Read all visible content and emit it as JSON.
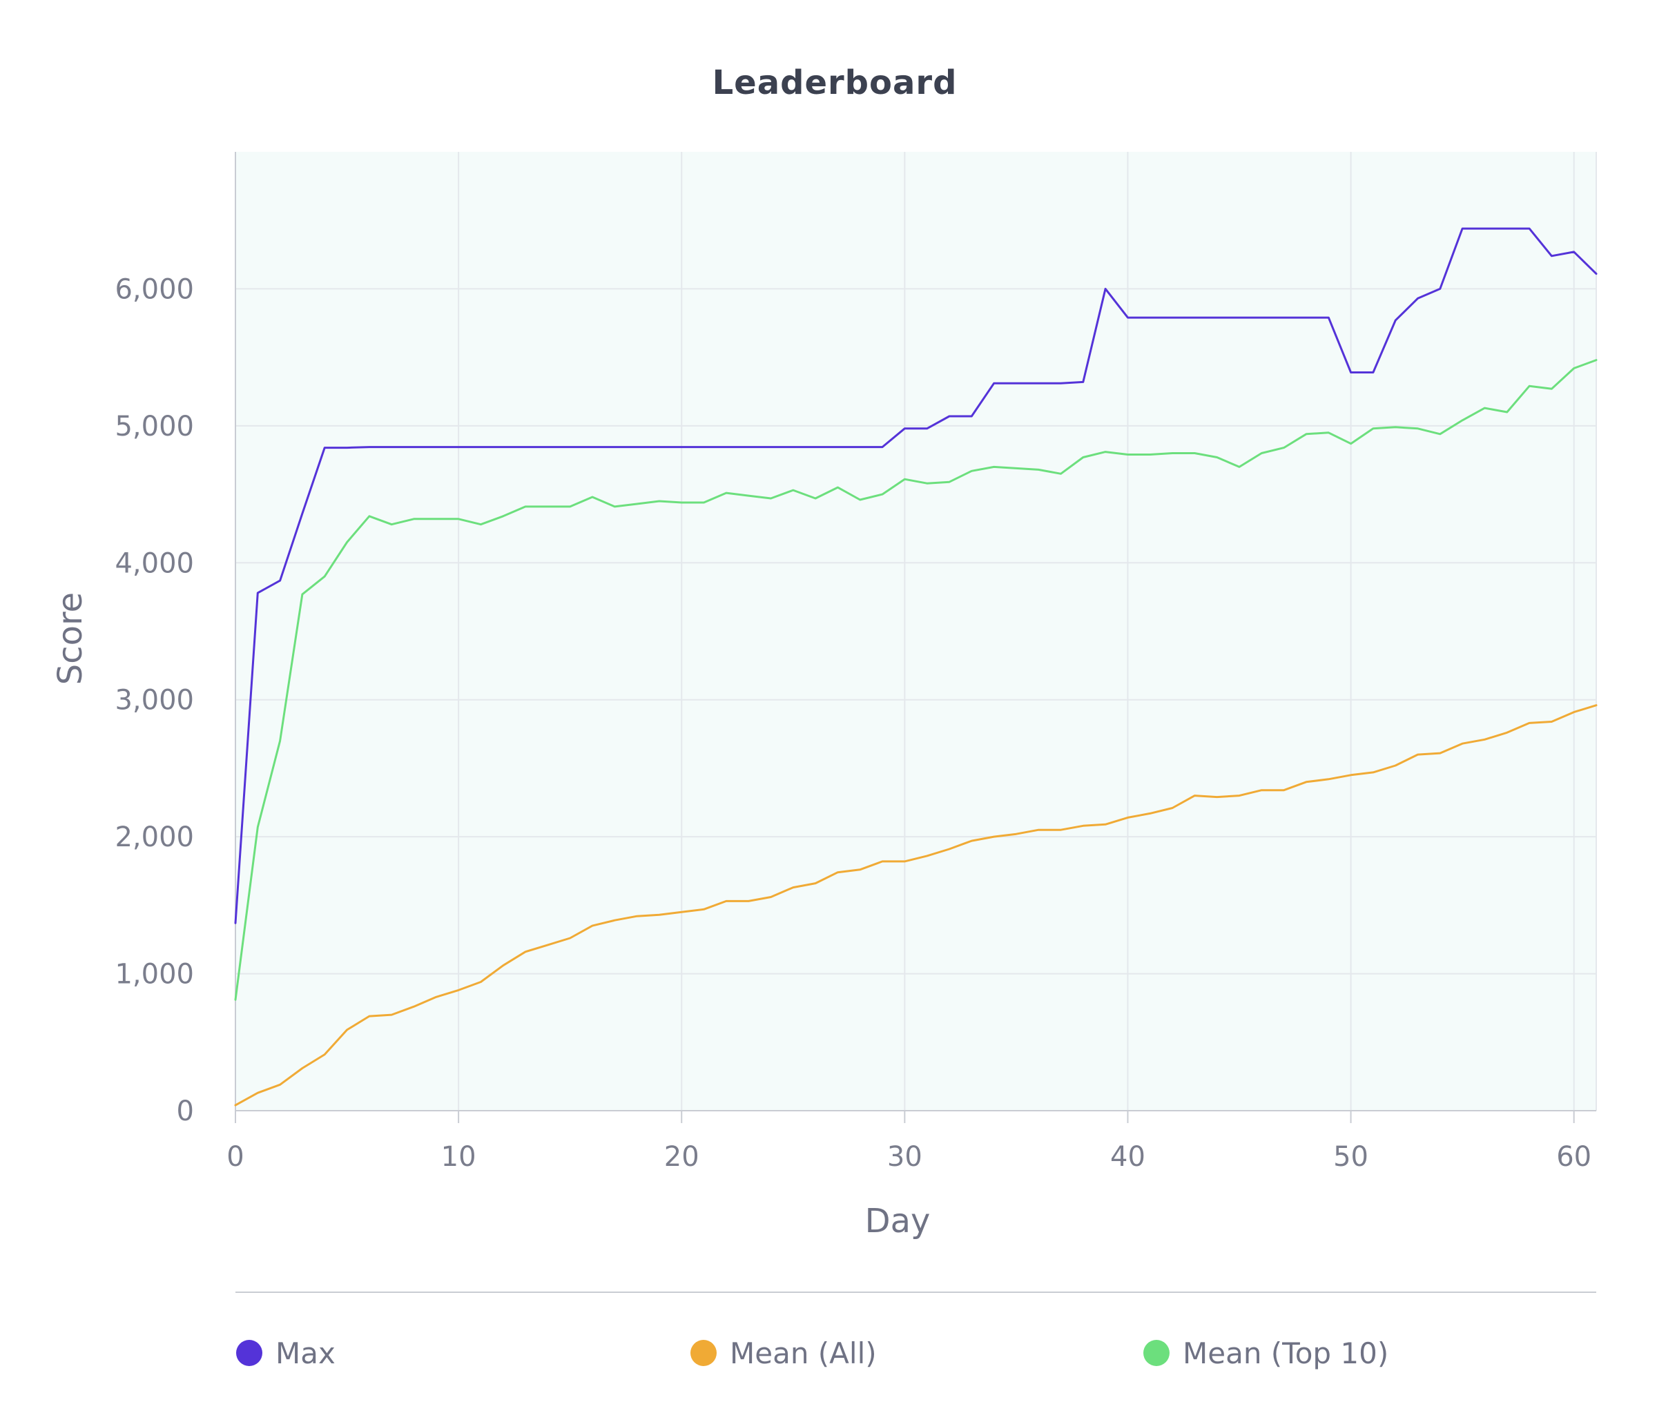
{
  "chart_data": {
    "type": "line",
    "title": "Leaderboard",
    "xlabel": "Day",
    "ylabel": "Score",
    "xlim": [
      0,
      61
    ],
    "ylim": [
      0,
      7000
    ],
    "x_ticks": [
      0,
      10,
      20,
      30,
      40,
      50,
      60
    ],
    "x_tick_labels": [
      "0",
      "10",
      "20",
      "30",
      "40",
      "50",
      "60"
    ],
    "y_ticks": [
      0,
      1000,
      2000,
      3000,
      4000,
      5000,
      6000
    ],
    "y_tick_labels": [
      "0",
      "1,000",
      "2,000",
      "3,000",
      "4,000",
      "5,000",
      "6,000"
    ],
    "grid": true,
    "legend_position": "bottom",
    "x": [
      0,
      1,
      2,
      3,
      4,
      5,
      6,
      7,
      8,
      9,
      10,
      11,
      12,
      13,
      14,
      15,
      16,
      17,
      18,
      19,
      20,
      21,
      22,
      23,
      24,
      25,
      26,
      27,
      28,
      29,
      30,
      31,
      32,
      33,
      34,
      35,
      36,
      37,
      38,
      39,
      40,
      41,
      42,
      43,
      44,
      45,
      46,
      47,
      48,
      49,
      50,
      51,
      52,
      53,
      54,
      55,
      56,
      57,
      58,
      59,
      60,
      61
    ],
    "series": [
      {
        "name": "Max",
        "color": "#5433d8",
        "values": [
          1370,
          3780,
          3870,
          4360,
          4840,
          4840,
          4845,
          4845,
          4845,
          4845,
          4845,
          4845,
          4845,
          4845,
          4845,
          4845,
          4845,
          4845,
          4845,
          4845,
          4845,
          4845,
          4845,
          4845,
          4845,
          4845,
          4845,
          4845,
          4845,
          4845,
          4980,
          4980,
          5070,
          5070,
          5310,
          5310,
          5310,
          5310,
          5320,
          6000,
          5790,
          5790,
          5790,
          5790,
          5790,
          5790,
          5790,
          5790,
          5790,
          5790,
          5390,
          5390,
          5770,
          5930,
          6000,
          6440,
          6440,
          6440,
          6440,
          6240,
          6270,
          6110
        ]
      },
      {
        "name": "Mean (All)",
        "color": "#f0aa35",
        "values": [
          40,
          130,
          190,
          310,
          410,
          590,
          690,
          700,
          760,
          830,
          880,
          940,
          1060,
          1160,
          1210,
          1260,
          1350,
          1390,
          1420,
          1430,
          1450,
          1470,
          1530,
          1530,
          1560,
          1630,
          1660,
          1740,
          1760,
          1820,
          1820,
          1860,
          1910,
          1970,
          2000,
          2020,
          2050,
          2050,
          2080,
          2090,
          2140,
          2170,
          2210,
          2300,
          2290,
          2300,
          2340,
          2340,
          2400,
          2420,
          2450,
          2470,
          2520,
          2600,
          2610,
          2680,
          2710,
          2760,
          2830,
          2840,
          2910,
          2960
        ]
      },
      {
        "name": "Mean (Top 10)",
        "color": "#6cdf7d",
        "values": [
          810,
          2070,
          2700,
          3770,
          3900,
          4150,
          4340,
          4280,
          4320,
          4320,
          4320,
          4280,
          4340,
          4410,
          4410,
          4410,
          4480,
          4410,
          4430,
          4450,
          4440,
          4440,
          4510,
          4490,
          4470,
          4530,
          4470,
          4550,
          4460,
          4500,
          4610,
          4580,
          4590,
          4670,
          4700,
          4690,
          4680,
          4650,
          4770,
          4810,
          4790,
          4790,
          4800,
          4800,
          4770,
          4700,
          4800,
          4840,
          4940,
          4950,
          4870,
          4980,
          4990,
          4980,
          4940,
          5040,
          5130,
          5100,
          5290,
          5270,
          5420,
          5480
        ]
      }
    ]
  }
}
